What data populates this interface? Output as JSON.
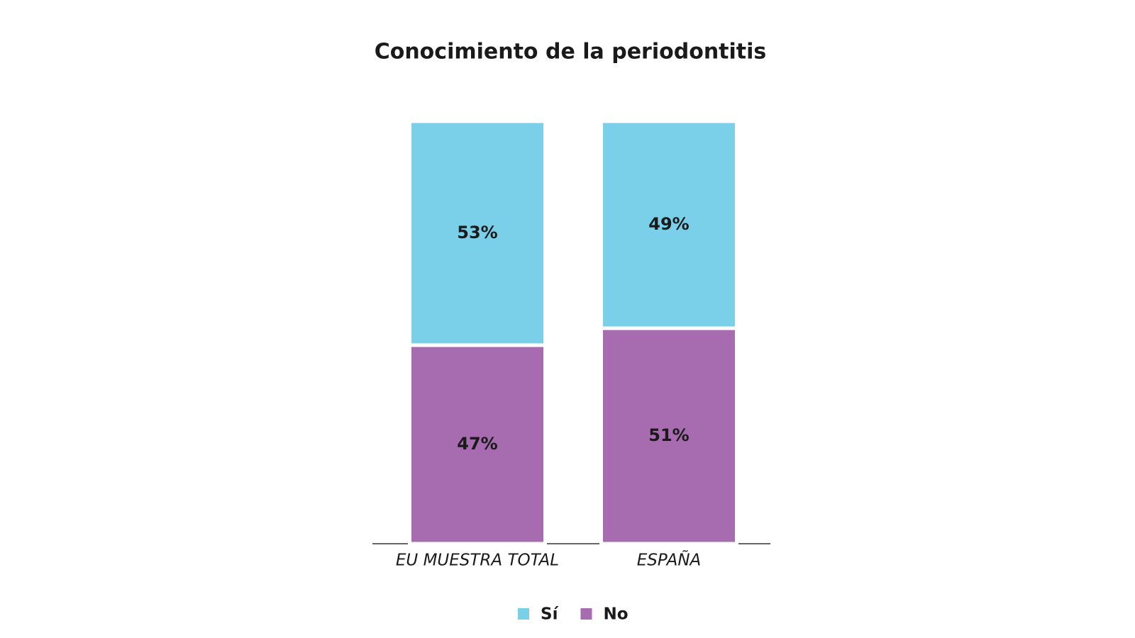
{
  "chart_data": {
    "type": "stacked-bar",
    "title": "Conocimiento de la periodontitis",
    "categories": [
      "EU MUESTRA TOTAL",
      "ESPAÑA"
    ],
    "series": [
      {
        "name": "Sí",
        "color": "#7ad0e8",
        "values": [
          53,
          49
        ],
        "value_labels": [
          "53%",
          "49%"
        ]
      },
      {
        "name": "No",
        "color": "#a76caf",
        "values": [
          47,
          51
        ],
        "value_labels": [
          "47%",
          "51%"
        ]
      }
    ],
    "ylim": [
      0,
      100
    ],
    "legend": "bottom"
  }
}
